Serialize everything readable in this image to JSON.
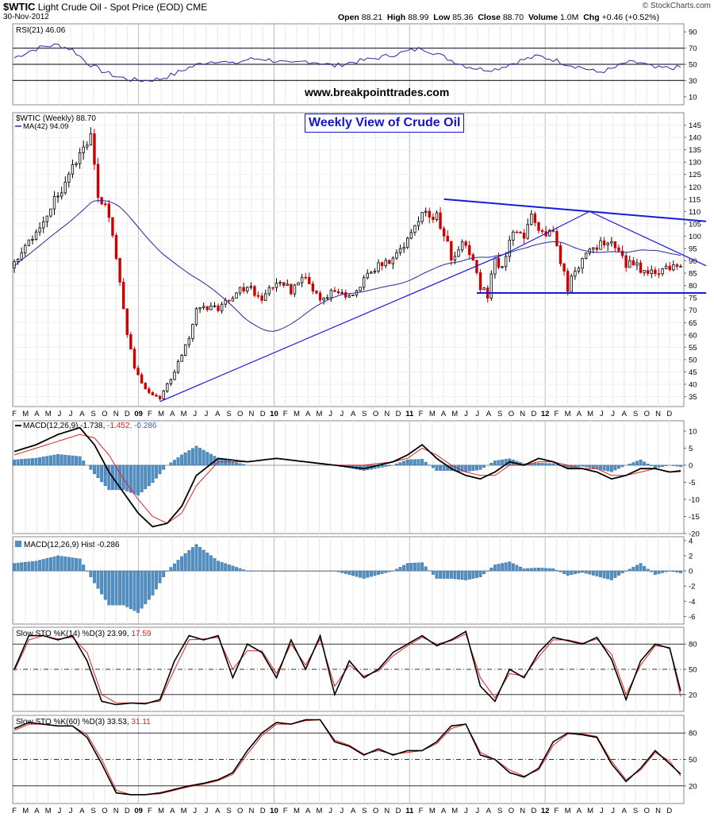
{
  "header": {
    "symbol": "$WTIC",
    "name": "Light Crude Oil - Spot Price (EOD)",
    "exchange": "CME",
    "date": "30-Nov-2012",
    "open_label": "Open",
    "open": "88.21",
    "high_label": "High",
    "high": "88.99",
    "low_label": "Low",
    "low": "85.36",
    "close_label": "Close",
    "close": "88.70",
    "volume_label": "Volume",
    "volume": "1.0M",
    "chg_label": "Chg",
    "chg": "+0.46 (+0.52%)",
    "brand": "© StockCharts.com"
  },
  "annotations": {
    "website": "www.breakpointtrades.com",
    "note": "Weekly View of Crude Oil"
  },
  "colors": {
    "up": "#000000",
    "down": "#cc0000",
    "indicator_blue": "#2a2a9c",
    "trendline": "#1a1ad8",
    "hist_fill": "#4f8fc4",
    "signal_red": "#dd2222"
  },
  "chart_data": [
    {
      "type": "line",
      "title": "RSI(21) 46.06",
      "ylim": [
        0,
        100
      ],
      "yticks": [
        10,
        30,
        50,
        70,
        90
      ],
      "reference_lines": [
        30,
        50,
        70
      ],
      "series": [
        {
          "name": "RSI(21)",
          "x": [
            0,
            4,
            8,
            12,
            16,
            20,
            24,
            28,
            32,
            36,
            40,
            44,
            48,
            52,
            56,
            60,
            64,
            68,
            72,
            76,
            80,
            84,
            88,
            92,
            96,
            100,
            104,
            108,
            112,
            116,
            120,
            124,
            128,
            132,
            136,
            140,
            144,
            148,
            152,
            156,
            160,
            164,
            168,
            172,
            176,
            183
          ],
          "values": [
            58,
            66,
            72,
            74,
            68,
            52,
            42,
            35,
            31,
            30,
            32,
            38,
            46,
            52,
            55,
            50,
            56,
            57,
            54,
            50,
            54,
            52,
            48,
            52,
            55,
            58,
            62,
            66,
            70,
            63,
            55,
            48,
            44,
            44,
            50,
            56,
            60,
            56,
            50,
            46,
            40,
            44,
            52,
            52,
            45,
            46
          ]
        }
      ]
    },
    {
      "type": "candlestick",
      "title": "$WTIC (Weekly) 88.70",
      "ylim": [
        31,
        150
      ],
      "yticks": [
        35,
        40,
        45,
        50,
        55,
        60,
        65,
        70,
        75,
        80,
        85,
        90,
        95,
        100,
        105,
        110,
        115,
        120,
        125,
        130,
        135,
        140,
        145
      ],
      "x_ticks": [
        "F",
        "M",
        "A",
        "M",
        "J",
        "J",
        "A",
        "S",
        "O",
        "N",
        "D",
        "09",
        "F",
        "M",
        "A",
        "M",
        "J",
        "J",
        "A",
        "S",
        "O",
        "N",
        "D",
        "10",
        "F",
        "M",
        "A",
        "M",
        "J",
        "J",
        "A",
        "S",
        "O",
        "N",
        "D",
        "11",
        "F",
        "M",
        "A",
        "M",
        "J",
        "J",
        "A",
        "S",
        "O",
        "N",
        "D",
        "12",
        "F",
        "M",
        "A",
        "M",
        "J",
        "J",
        "A",
        "S",
        "O",
        "N",
        "D"
      ],
      "close_anchors": {
        "x": [
          0,
          3,
          6,
          10,
          14,
          18,
          21,
          23,
          25,
          27,
          29,
          31,
          33,
          35,
          37,
          40,
          42,
          44,
          46,
          48,
          50,
          52,
          56,
          60,
          64,
          68,
          72,
          76,
          80,
          84,
          88,
          92,
          96,
          100,
          104,
          108,
          112,
          116,
          118,
          120,
          124,
          128,
          130,
          132,
          134,
          136,
          138,
          140,
          142,
          144,
          148,
          152,
          156,
          158,
          160,
          162,
          164,
          166,
          168,
          170,
          172,
          174,
          176,
          178,
          180,
          183
        ],
        "y": [
          88,
          95,
          102,
          112,
          120,
          133,
          143,
          118,
          112,
          100,
          83,
          60,
          47,
          40,
          37,
          34,
          40,
          45,
          52,
          58,
          70,
          72,
          70,
          76,
          80,
          74,
          82,
          78,
          84,
          74,
          78,
          76,
          82,
          88,
          90,
          98,
          111,
          108,
          100,
          92,
          98,
          79,
          76,
          92,
          86,
          100,
          103,
          98,
          110,
          104,
          100,
          79,
          92,
          96,
          95,
          98,
          97,
          93,
          88,
          90,
          87,
          86,
          85,
          87,
          88,
          88.7
        ]
      },
      "overlays": [
        {
          "name": "MA(42)",
          "last": "94.09"
        }
      ],
      "trendlines": [
        {
          "from": [
            40,
            33
          ],
          "to": [
            135,
            93
          ]
        },
        {
          "from": [
            135,
            93
          ],
          "to": [
            158,
            110
          ]
        },
        {
          "from": [
            118,
            115
          ],
          "to": [
            190,
            106
          ]
        },
        {
          "from": [
            158,
            110
          ],
          "to": [
            190,
            88
          ]
        },
        {
          "from": [
            127,
            77
          ],
          "to": [
            190,
            77
          ]
        }
      ]
    },
    {
      "type": "line",
      "title": "MACD(12,26,9)",
      "values_text": [
        "-1.738",
        "-1.452",
        "-0.286"
      ],
      "ylim": [
        -20,
        13
      ],
      "yticks": [
        10,
        5,
        0,
        -5,
        -10,
        -15,
        -20
      ],
      "series": [
        {
          "name": "MACD",
          "x": [
            0,
            6,
            12,
            18,
            22,
            26,
            30,
            34,
            38,
            42,
            46,
            50,
            56,
            64,
            72,
            80,
            88,
            96,
            104,
            108,
            112,
            116,
            120,
            124,
            128,
            132,
            136,
            140,
            144,
            148,
            152,
            156,
            160,
            164,
            168,
            172,
            176,
            180,
            183
          ],
          "values": [
            4,
            6,
            9,
            11,
            6,
            -2,
            -8,
            -14,
            -18,
            -17,
            -12,
            -3,
            2,
            1,
            2,
            1,
            0,
            -1,
            1,
            3,
            6,
            2,
            -1,
            -3,
            -4,
            -2,
            1,
            0,
            2,
            1,
            -1,
            -1,
            -2,
            -4,
            -3,
            -1,
            -1,
            -2,
            -1.7
          ]
        },
        {
          "name": "Signal",
          "x": [
            0,
            6,
            12,
            18,
            22,
            26,
            30,
            34,
            38,
            42,
            46,
            50,
            56,
            64,
            72,
            80,
            88,
            96,
            104,
            108,
            112,
            116,
            120,
            124,
            128,
            132,
            136,
            140,
            144,
            148,
            152,
            156,
            160,
            164,
            168,
            172,
            176,
            180,
            183
          ],
          "values": [
            3,
            5,
            7,
            9,
            8,
            3,
            -4,
            -10,
            -15,
            -17,
            -14,
            -6,
            1,
            1,
            2,
            1,
            0,
            0,
            1,
            2,
            5,
            3,
            0,
            -2,
            -3,
            -3,
            0,
            0,
            1,
            1,
            0,
            -1,
            -1,
            -3,
            -3,
            -2,
            -1,
            -2,
            -1.45
          ]
        }
      ]
    },
    {
      "type": "bar",
      "title": "MACD(12,26,9) Hist -0.286",
      "ylim": [
        -7,
        4.5
      ],
      "yticks": [
        4,
        2,
        0,
        -2,
        -4,
        -6
      ],
      "series": [
        {
          "name": "Hist",
          "x": [
            0,
            6,
            12,
            18,
            22,
            26,
            30,
            34,
            38,
            42,
            46,
            50,
            56,
            64,
            72,
            80,
            88,
            96,
            104,
            108,
            112,
            116,
            120,
            124,
            128,
            132,
            136,
            140,
            144,
            148,
            152,
            156,
            160,
            164,
            168,
            172,
            176,
            180,
            183
          ],
          "values": [
            1,
            1.3,
            2.0,
            1.6,
            -1.6,
            -4.5,
            -4.5,
            -5.5,
            -3.2,
            0,
            1.9,
            3.5,
            1.3,
            0,
            0,
            0,
            0,
            -1,
            0,
            1,
            1.1,
            -1,
            -1,
            -1.2,
            -0.8,
            0.8,
            1.2,
            0.3,
            0.4,
            0.3,
            -0.6,
            -0.2,
            -0.7,
            -1.2,
            0,
            1,
            -0.5,
            0,
            -0.286
          ]
        }
      ]
    },
    {
      "type": "line",
      "title": "Slow STO %K(14) %D(3)",
      "values_text": [
        "23.99",
        "17.59"
      ],
      "ylim": [
        0,
        100
      ],
      "yticks": [
        20,
        50,
        80
      ],
      "reference_lines": [
        20,
        50,
        80
      ],
      "series": [
        {
          "name": "%K",
          "x": [
            0,
            4,
            8,
            12,
            16,
            20,
            24,
            28,
            32,
            36,
            40,
            44,
            48,
            52,
            56,
            60,
            64,
            68,
            72,
            76,
            80,
            84,
            88,
            92,
            96,
            100,
            104,
            108,
            112,
            116,
            120,
            124,
            128,
            132,
            136,
            140,
            144,
            148,
            152,
            156,
            160,
            164,
            168,
            172,
            176,
            180,
            183
          ],
          "values": [
            50,
            90,
            90,
            85,
            90,
            60,
            12,
            8,
            10,
            9,
            14,
            60,
            90,
            85,
            90,
            40,
            80,
            70,
            40,
            85,
            50,
            90,
            20,
            60,
            40,
            50,
            70,
            80,
            90,
            78,
            85,
            95,
            30,
            12,
            50,
            40,
            70,
            88,
            84,
            80,
            88,
            62,
            14,
            60,
            80,
            75,
            24
          ]
        },
        {
          "name": "%D",
          "x": [
            0,
            4,
            8,
            12,
            16,
            20,
            24,
            28,
            32,
            36,
            40,
            44,
            48,
            52,
            56,
            60,
            64,
            68,
            72,
            76,
            80,
            84,
            88,
            92,
            96,
            100,
            104,
            108,
            112,
            116,
            120,
            124,
            128,
            132,
            136,
            140,
            144,
            148,
            152,
            156,
            160,
            164,
            168,
            172,
            176,
            180,
            183
          ],
          "values": [
            48,
            85,
            90,
            86,
            88,
            70,
            20,
            10,
            10,
            10,
            12,
            50,
            85,
            86,
            88,
            50,
            72,
            72,
            45,
            80,
            55,
            86,
            30,
            55,
            42,
            48,
            66,
            78,
            88,
            80,
            84,
            92,
            40,
            16,
            45,
            42,
            65,
            85,
            85,
            81,
            86,
            68,
            20,
            55,
            78,
            76,
            17.6
          ]
        }
      ]
    },
    {
      "type": "line",
      "title": "Slow STO %K(60) %D(3)",
      "values_text": [
        "33.53",
        "31.11"
      ],
      "ylim": [
        0,
        100
      ],
      "yticks": [
        20,
        50,
        80
      ],
      "reference_lines": [
        20,
        50,
        80
      ],
      "series": [
        {
          "name": "%K",
          "x": [
            0,
            4,
            8,
            12,
            16,
            20,
            24,
            28,
            32,
            36,
            40,
            44,
            48,
            52,
            56,
            60,
            64,
            68,
            72,
            76,
            80,
            84,
            88,
            92,
            96,
            100,
            104,
            108,
            112,
            116,
            120,
            124,
            128,
            132,
            136,
            140,
            144,
            148,
            152,
            156,
            160,
            164,
            168,
            172,
            176,
            180,
            183
          ],
          "values": [
            85,
            92,
            90,
            88,
            88,
            75,
            45,
            12,
            10,
            10,
            12,
            16,
            20,
            23,
            27,
            35,
            60,
            80,
            92,
            90,
            95,
            95,
            70,
            65,
            55,
            62,
            55,
            60,
            60,
            70,
            88,
            90,
            55,
            50,
            35,
            30,
            40,
            70,
            80,
            78,
            75,
            45,
            25,
            40,
            60,
            45,
            33.5
          ]
        },
        {
          "name": "%D",
          "x": [
            0,
            4,
            8,
            12,
            16,
            20,
            24,
            28,
            32,
            36,
            40,
            44,
            48,
            52,
            56,
            60,
            64,
            68,
            72,
            76,
            80,
            84,
            88,
            92,
            96,
            100,
            104,
            108,
            112,
            116,
            120,
            124,
            128,
            132,
            136,
            140,
            144,
            148,
            152,
            156,
            160,
            164,
            168,
            172,
            176,
            180,
            183
          ],
          "values": [
            83,
            90,
            90,
            88,
            88,
            78,
            50,
            15,
            10,
            10,
            11,
            15,
            19,
            22,
            26,
            33,
            56,
            77,
            90,
            90,
            94,
            95,
            72,
            66,
            56,
            60,
            56,
            58,
            60,
            68,
            85,
            90,
            58,
            50,
            38,
            31,
            38,
            66,
            79,
            79,
            76,
            48,
            27,
            38,
            58,
            48,
            31.1
          ]
        }
      ]
    }
  ]
}
